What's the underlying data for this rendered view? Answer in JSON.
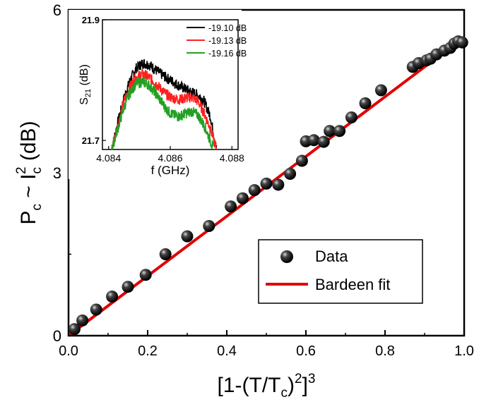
{
  "chart_data": [
    {
      "type": "scatter",
      "xlabel": "[1-(T/T",
      "xlabel_sub": "c",
      "xlabel_after": ")",
      "xlabel_sup": "2",
      "xlabel_tail": "]",
      "xlabel_sup2": "3",
      "ylabel": "P",
      "ylabel_sub": "c",
      "ylabel_mid": " ~ I",
      "ylabel_sub2": "c",
      "ylabel_sup": "2",
      "ylabel_tail": " (dB)",
      "xlim": [
        0,
        1.0
      ],
      "ylim": [
        0,
        6
      ],
      "xticks": [
        "0.0",
        "0.2",
        "0.4",
        "0.6",
        "0.8",
        "1.0"
      ],
      "yticks": [
        "0",
        "3",
        "6"
      ],
      "legend_position": "bottom-right",
      "series": [
        {
          "name": "Data",
          "kind": "markers",
          "color": "#000000",
          "x": [
            0.015,
            0.035,
            0.07,
            0.11,
            0.15,
            0.195,
            0.245,
            0.3,
            0.355,
            0.41,
            0.44,
            0.47,
            0.5,
            0.53,
            0.56,
            0.59,
            0.6,
            0.62,
            0.645,
            0.66,
            0.685,
            0.715,
            0.75,
            0.79,
            0.87,
            0.885,
            0.905,
            0.915,
            0.93,
            0.95,
            0.965,
            0.975,
            0.985,
            0.995
          ],
          "y": [
            0.12,
            0.28,
            0.48,
            0.72,
            0.9,
            1.12,
            1.5,
            1.83,
            2.02,
            2.38,
            2.53,
            2.68,
            2.8,
            2.78,
            2.98,
            3.22,
            3.58,
            3.6,
            3.57,
            3.77,
            3.77,
            4.02,
            4.28,
            4.52,
            4.95,
            5.02,
            5.07,
            5.1,
            5.18,
            5.25,
            5.3,
            5.38,
            5.42,
            5.4
          ]
        },
        {
          "name": "Bardeen fit",
          "kind": "line",
          "color": "#e00000",
          "x": [
            0,
            1.0
          ],
          "y": [
            0.0,
            5.5
          ]
        }
      ]
    },
    {
      "type": "line",
      "xlabel": "f (GHz)",
      "ylabel": "S",
      "ylabel_sub": "21",
      "ylabel_tail": " (dB)",
      "xlim": [
        4.0838,
        4.0882
      ],
      "ylim": [
        21.685,
        21.9
      ],
      "xticks": [
        "4.084",
        "4.086",
        "4.088"
      ],
      "xtick_values": [
        4.084,
        4.086,
        4.088
      ],
      "yticks": [
        "21.7",
        "21.9"
      ],
      "ytick_values": [
        21.7,
        21.9
      ],
      "legend_position": "top-right",
      "series": [
        {
          "name": "-19.10 dB",
          "color": "#000000",
          "x": [
            4.0841,
            4.0843,
            4.0845,
            4.0847,
            4.0849,
            4.0851,
            4.0853,
            4.0855,
            4.0857,
            4.0859,
            4.0861,
            4.0863,
            4.0865,
            4.0867,
            4.0869,
            4.0871,
            4.0873,
            4.0875
          ],
          "y": [
            21.685,
            21.73,
            21.77,
            21.8,
            21.82,
            21.828,
            21.826,
            21.818,
            21.81,
            21.803,
            21.797,
            21.79,
            21.785,
            21.78,
            21.775,
            21.765,
            21.74,
            21.685
          ]
        },
        {
          "name": "-19.13 dB",
          "color": "#ff2020",
          "x": [
            4.0841,
            4.0843,
            4.0845,
            4.0847,
            4.0849,
            4.0851,
            4.0853,
            4.0855,
            4.0857,
            4.0859,
            4.0861,
            4.0863,
            4.0865,
            4.0867,
            4.0869,
            4.0871,
            4.0873,
            4.0875
          ],
          "y": [
            21.685,
            21.725,
            21.765,
            21.79,
            21.805,
            21.81,
            21.805,
            21.796,
            21.785,
            21.775,
            21.77,
            21.768,
            21.77,
            21.772,
            21.765,
            21.745,
            21.72,
            21.685
          ]
        },
        {
          "name": "-19.16 dB",
          "color": "#22a022",
          "x": [
            4.0841,
            4.0843,
            4.0845,
            4.0847,
            4.0849,
            4.0851,
            4.0853,
            4.0855,
            4.0857,
            4.0859,
            4.0861,
            4.0863,
            4.0865,
            4.0867,
            4.0869,
            4.0871,
            4.0873,
            4.0874
          ],
          "y": [
            21.685,
            21.72,
            21.755,
            21.78,
            21.795,
            21.797,
            21.792,
            21.78,
            21.765,
            21.75,
            21.742,
            21.74,
            21.745,
            21.748,
            21.742,
            21.725,
            21.7,
            21.685
          ]
        }
      ]
    }
  ]
}
